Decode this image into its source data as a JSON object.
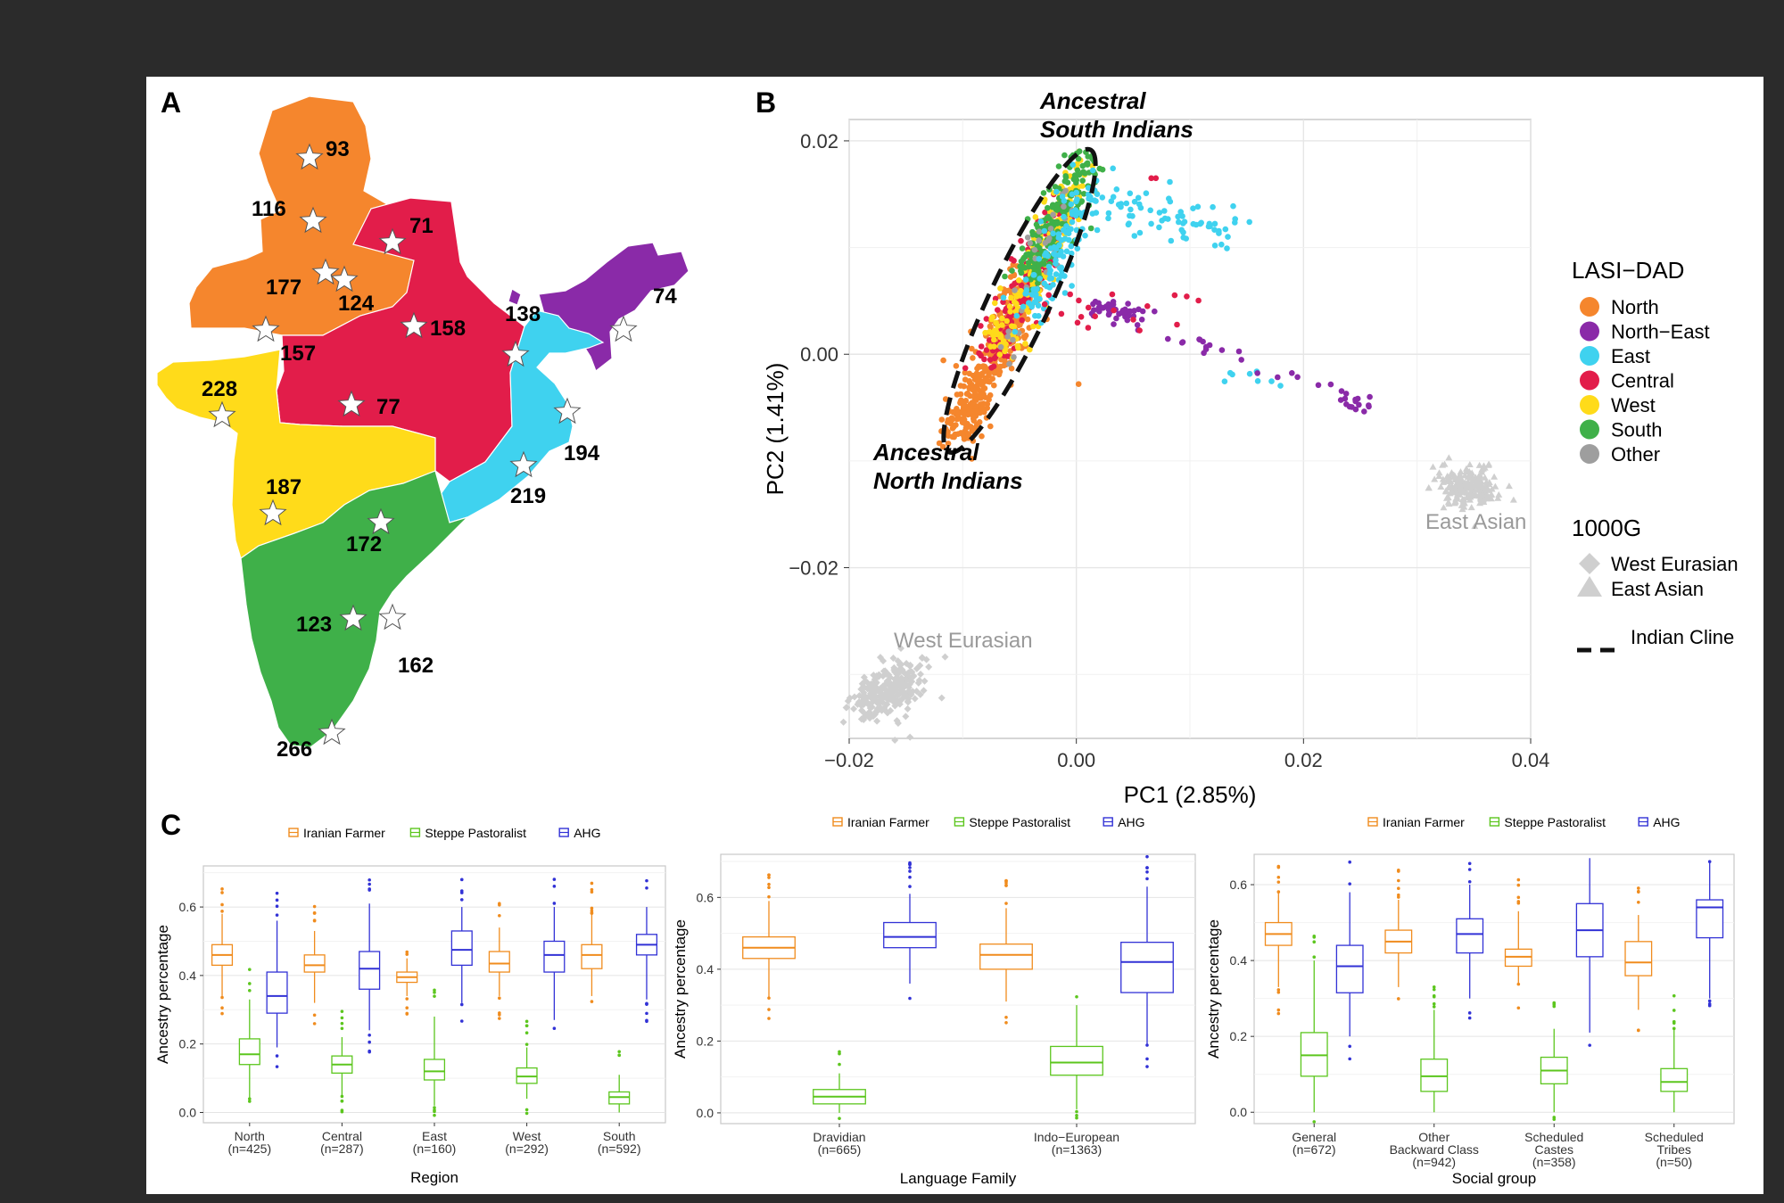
{
  "panel_labels": {
    "a": "A",
    "b": "B",
    "c": "C"
  },
  "map": {
    "colors": {
      "North": "#f5862d",
      "North-East": "#8a2aa8",
      "East": "#3fd2ef",
      "Central": "#e21d4a",
      "West": "#ffdb1a",
      "South": "#3fb049"
    },
    "counts": [
      "93",
      "116",
      "71",
      "177",
      "124",
      "158",
      "138",
      "74",
      "157",
      "228",
      "77",
      "194",
      "187",
      "219",
      "172",
      "123",
      "162",
      "266"
    ]
  },
  "chart_data": [
    {
      "type": "scatter",
      "xlabel": "PC1 (2.85%)",
      "ylabel": "PC2 (1.41%)",
      "xlim": [
        -0.02,
        0.04
      ],
      "ylim": [
        -0.036,
        0.022
      ],
      "xticks": [
        "−0.02",
        "0.00",
        "0.02",
        "0.04"
      ],
      "yticks": [
        "−0.02",
        "0.00",
        "0.02"
      ],
      "grid": true,
      "legend": {
        "title": "LASI−DAD",
        "entries": [
          {
            "name": "North",
            "color": "#f5862d"
          },
          {
            "name": "North−East",
            "color": "#8a2aa8"
          },
          {
            "name": "East",
            "color": "#3fd2ef"
          },
          {
            "name": "Central",
            "color": "#e21d4a"
          },
          {
            "name": "West",
            "color": "#ffdb1a"
          },
          {
            "name": "South",
            "color": "#3fb049"
          },
          {
            "name": "Other",
            "color": "#9e9e9e"
          }
        ],
        "title2": "1000G",
        "shape_entries": [
          {
            "name": "West Eurasian",
            "shape": "diamond"
          },
          {
            "name": "East Asian",
            "shape": "triangle"
          }
        ],
        "line_entry": "Indian Cline",
        "placement": "right"
      },
      "annotations": {
        "asi": [
          "Ancestral",
          "South Indians"
        ],
        "ani": [
          "Ancestral",
          "North Indians"
        ],
        "west_eurasian": "West Eurasian",
        "east_asian": "East Asian"
      },
      "clusters": {
        "cline_start": [
          -0.0105,
          -0.0075
        ],
        "cline_end": [
          0.0005,
          0.0175
        ],
        "west_eurasian_center": [
          -0.0165,
          -0.0315
        ],
        "east_asian_center": [
          0.0345,
          -0.0125
        ]
      }
    },
    {
      "type": "box",
      "legend": [
        "Iranian Farmer",
        "Steppe Pastoralist",
        "AHG"
      ],
      "colors": [
        "#f08c1e",
        "#5cc61e",
        "#3232d6"
      ],
      "xlabel": "Region",
      "ylabel": "Ancestry percentage",
      "ylim": [
        -0.03,
        0.72
      ],
      "yticks": [
        "0.0",
        "0.2",
        "0.4",
        "0.6"
      ],
      "categories": [
        [
          "North",
          "(n=425)"
        ],
        [
          "Central",
          "(n=287)"
        ],
        [
          "East",
          "(n=160)"
        ],
        [
          "West",
          "(n=292)"
        ],
        [
          "South",
          "(n=592)"
        ]
      ],
      "series": [
        {
          "name": "Iranian Farmer",
          "values": [
            [
              0.34,
              0.43,
              0.46,
              0.49,
              0.58
            ],
            [
              0.32,
              0.41,
              0.43,
              0.46,
              0.53
            ],
            [
              0.34,
              0.38,
              0.395,
              0.41,
              0.45
            ],
            [
              0.34,
              0.41,
              0.435,
              0.47,
              0.54
            ],
            [
              0.34,
              0.42,
              0.46,
              0.49,
              0.58
            ]
          ]
        },
        {
          "name": "Steppe Pastoralist",
          "values": [
            [
              0.04,
              0.14,
              0.17,
              0.215,
              0.33
            ],
            [
              0.05,
              0.115,
              0.14,
              0.165,
              0.22
            ],
            [
              0.02,
              0.095,
              0.12,
              0.155,
              0.28
            ],
            [
              0.04,
              0.085,
              0.105,
              0.13,
              0.19
            ],
            [
              0.0,
              0.025,
              0.045,
              0.06,
              0.11
            ]
          ]
        },
        {
          "name": "AHG",
          "values": [
            [
              0.19,
              0.29,
              0.34,
              0.41,
              0.56
            ],
            [
              0.24,
              0.36,
              0.42,
              0.47,
              0.61
            ],
            [
              0.32,
              0.43,
              0.475,
              0.53,
              0.6
            ],
            [
              0.27,
              0.41,
              0.46,
              0.5,
              0.6
            ],
            [
              0.33,
              0.46,
              0.49,
              0.52,
              0.6
            ]
          ]
        }
      ]
    },
    {
      "type": "box",
      "legend": [
        "Iranian Farmer",
        "Steppe Pastoralist",
        "AHG"
      ],
      "colors": [
        "#f08c1e",
        "#5cc61e",
        "#3232d6"
      ],
      "xlabel": "Language Family",
      "ylabel": "Ancestry percentage",
      "ylim": [
        -0.03,
        0.72
      ],
      "yticks": [
        "0.0",
        "0.2",
        "0.4",
        "0.6"
      ],
      "categories": [
        [
          "Dravidian",
          "(n=665)"
        ],
        [
          "Indo−European",
          "(n=1363)"
        ]
      ],
      "series": [
        {
          "name": "Iranian Farmer",
          "values": [
            [
              0.32,
              0.43,
              0.46,
              0.49,
              0.59
            ],
            [
              0.31,
              0.4,
              0.44,
              0.47,
              0.57
            ]
          ]
        },
        {
          "name": "Steppe Pastoralist",
          "values": [
            [
              0.0,
              0.025,
              0.045,
              0.065,
              0.11
            ],
            [
              0.01,
              0.105,
              0.14,
              0.185,
              0.3
            ]
          ]
        },
        {
          "name": "AHG",
          "values": [
            [
              0.36,
              0.46,
              0.49,
              0.53,
              0.61
            ],
            [
              0.19,
              0.335,
              0.42,
              0.475,
              0.63
            ]
          ]
        }
      ]
    },
    {
      "type": "box",
      "legend": [
        "Iranian Farmer",
        "Steppe Pastoralist",
        "AHG"
      ],
      "colors": [
        "#f08c1e",
        "#5cc61e",
        "#3232d6"
      ],
      "xlabel": "Social group",
      "ylabel": "Ancestry percentage",
      "ylim": [
        -0.03,
        0.68
      ],
      "yticks": [
        "0.0",
        "0.2",
        "0.4",
        "0.6"
      ],
      "categories": [
        [
          "General",
          "(n=672)"
        ],
        [
          "Other",
          "Backward Class",
          "(n=942)"
        ],
        [
          "Scheduled",
          "Castes",
          "(n=358)"
        ],
        [
          "Scheduled",
          "Tribes",
          "(n=50)"
        ]
      ],
      "series": [
        {
          "name": "Iranian Farmer",
          "values": [
            [
              0.33,
              0.44,
              0.47,
              0.5,
              0.58
            ],
            [
              0.33,
              0.42,
              0.45,
              0.48,
              0.56
            ],
            [
              0.34,
              0.385,
              0.41,
              0.43,
              0.53
            ],
            [
              0.27,
              0.36,
              0.395,
              0.45,
              0.52
            ]
          ]
        },
        {
          "name": "Steppe Pastoralist",
          "values": [
            [
              0.0,
              0.095,
              0.15,
              0.21,
              0.4
            ],
            [
              0.0,
              0.055,
              0.095,
              0.14,
              0.27
            ],
            [
              0.0,
              0.075,
              0.11,
              0.145,
              0.22
            ],
            [
              0.0,
              0.055,
              0.08,
              0.115,
              0.22
            ]
          ]
        },
        {
          "name": "AHG",
          "values": [
            [
              0.2,
              0.315,
              0.385,
              0.44,
              0.58
            ],
            [
              0.3,
              0.42,
              0.47,
              0.51,
              0.6
            ],
            [
              0.21,
              0.41,
              0.48,
              0.55,
              0.67
            ],
            [
              0.3,
              0.46,
              0.54,
              0.56,
              0.66
            ]
          ]
        }
      ]
    }
  ]
}
